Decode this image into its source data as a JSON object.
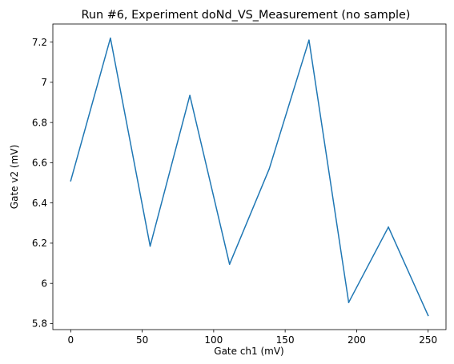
{
  "chart_data": {
    "type": "line",
    "title": "Run #6, Experiment doNd_VS_Measurement (no sample)",
    "xlabel": "Gate ch1 (mV)",
    "ylabel": "Gate v2 (mV)",
    "xlim": [
      -12.5,
      262.5
    ],
    "ylim": [
      5.77,
      7.29
    ],
    "xticks": [
      0,
      50,
      100,
      150,
      200,
      250
    ],
    "xtick_labels": [
      "0",
      "50",
      "100",
      "150",
      "200",
      "250"
    ],
    "yticks": [
      5.8,
      6.0,
      6.2,
      6.4,
      6.6,
      6.8,
      7.0,
      7.2
    ],
    "ytick_labels": [
      "5.8",
      "6",
      "6.2",
      "6.4",
      "6.6",
      "6.8",
      "7",
      "7.2"
    ],
    "grid": false,
    "series": [
      {
        "color": "#1f77b4",
        "x": [
          0,
          27.78,
          55.56,
          83.33,
          111.11,
          138.89,
          166.67,
          194.44,
          222.22,
          250
        ],
        "y": [
          6.51,
          7.22,
          6.185,
          6.935,
          6.095,
          6.57,
          7.21,
          5.905,
          6.28,
          5.84
        ]
      }
    ]
  }
}
